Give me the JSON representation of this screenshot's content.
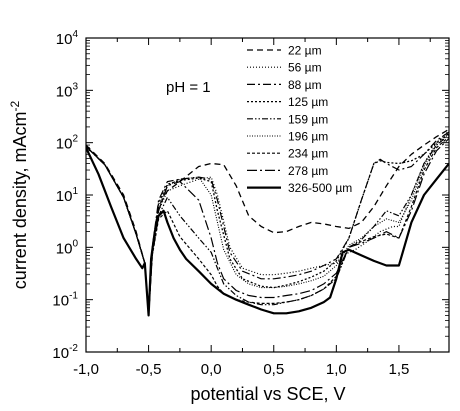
{
  "chart_data": {
    "type": "line",
    "title": "",
    "xlabel": "potential  vs SCE, V",
    "ylabel": "current density, mAcm",
    "ylabel_exponent": "-2",
    "x_scale": "linear",
    "y_scale": "log",
    "xlim": [
      -1.0,
      1.9
    ],
    "ylim": [
      0.01,
      10000
    ],
    "grid": false,
    "legend_position": "top-right",
    "annotation": "pH = 1",
    "x_ticks": [
      {
        "value": -1.0,
        "label": "-1,0"
      },
      {
        "value": -0.5,
        "label": "-0,5"
      },
      {
        "value": 0.0,
        "label": "0,0"
      },
      {
        "value": 0.5,
        "label": "0,5"
      },
      {
        "value": 1.0,
        "label": "1,0"
      },
      {
        "value": 1.5,
        "label": "1,5"
      }
    ],
    "y_ticks": [
      {
        "value": 0.01,
        "base": "10",
        "exp": "-2"
      },
      {
        "value": 0.1,
        "base": "10",
        "exp": "-1"
      },
      {
        "value": 1,
        "base": "10",
        "exp": "0"
      },
      {
        "value": 10,
        "base": "10",
        "exp": "1"
      },
      {
        "value": 100,
        "base": "10",
        "exp": "2"
      },
      {
        "value": 1000,
        "base": "10",
        "exp": "3"
      },
      {
        "value": 10000,
        "base": "10",
        "exp": "4"
      }
    ],
    "series": [
      {
        "name": "22 µm",
        "dash": "6,4",
        "width": 1.3,
        "x": [
          -1.0,
          -0.85,
          -0.7,
          -0.6,
          -0.53,
          -0.5,
          -0.47,
          -0.42,
          -0.35,
          -0.25,
          -0.1,
          0.0,
          0.1,
          0.2,
          0.3,
          0.4,
          0.5,
          0.6,
          0.7,
          0.8,
          0.9,
          1.0,
          1.1,
          1.2,
          1.3,
          1.4,
          1.5,
          1.6,
          1.7,
          1.8,
          1.9
        ],
        "y": [
          90,
          40,
          10,
          2,
          0.5,
          0.05,
          1.0,
          6,
          12,
          18,
          35,
          40,
          38,
          15,
          4,
          2.5,
          1.9,
          2.0,
          2.5,
          3,
          2.8,
          2.5,
          2.3,
          3,
          6,
          15,
          35,
          60,
          90,
          130,
          180
        ]
      },
      {
        "name": "56 µm",
        "dash": "1,2",
        "width": 1.2,
        "x": [
          -1.0,
          -0.85,
          -0.7,
          -0.6,
          -0.53,
          -0.5,
          -0.47,
          -0.42,
          -0.35,
          -0.25,
          -0.1,
          0.0,
          0.05,
          0.15,
          0.25,
          0.4,
          0.5,
          0.6,
          0.7,
          0.8,
          0.9,
          1.0,
          1.05,
          1.15,
          1.25,
          1.35,
          1.45,
          1.5,
          1.6,
          1.7,
          1.8,
          1.9
        ],
        "y": [
          85,
          38,
          9,
          1.8,
          0.5,
          0.05,
          0.8,
          5,
          12,
          15,
          20,
          22,
          10,
          1.0,
          0.4,
          0.3,
          0.3,
          0.32,
          0.35,
          0.4,
          0.45,
          0.5,
          0.7,
          0.9,
          1.3,
          2,
          2.5,
          2.5,
          10,
          40,
          100,
          170
        ]
      },
      {
        "name": "88 µm",
        "dash": "8,3,2,3",
        "width": 1.2,
        "x": [
          -1.0,
          -0.85,
          -0.7,
          -0.6,
          -0.53,
          -0.5,
          -0.47,
          -0.42,
          -0.35,
          -0.25,
          -0.1,
          0.0,
          0.05,
          0.15,
          0.25,
          0.4,
          0.5,
          0.6,
          0.7,
          0.8,
          0.9,
          1.0,
          1.1,
          1.2,
          1.3,
          1.35,
          1.4,
          1.5,
          1.6,
          1.7,
          1.8,
          1.9
        ],
        "y": [
          85,
          38,
          9,
          1.8,
          0.5,
          0.05,
          1.0,
          8,
          18,
          20,
          22,
          20,
          8,
          0.8,
          0.35,
          0.25,
          0.25,
          0.27,
          0.3,
          0.35,
          0.45,
          0.6,
          1.5,
          8,
          40,
          48,
          40,
          30,
          35,
          60,
          110,
          160
        ]
      },
      {
        "name": "125 µm",
        "dash": "2,2",
        "width": 1.3,
        "x": [
          -1.0,
          -0.85,
          -0.7,
          -0.6,
          -0.53,
          -0.5,
          -0.47,
          -0.42,
          -0.35,
          -0.25,
          -0.1,
          0.0,
          0.05,
          0.15,
          0.25,
          0.4,
          0.5,
          0.6,
          0.7,
          0.8,
          0.9,
          1.0,
          1.1,
          1.2,
          1.3,
          1.35,
          1.4,
          1.5,
          1.6,
          1.7,
          1.8,
          1.9
        ],
        "y": [
          85,
          38,
          9,
          1.8,
          0.5,
          0.05,
          0.9,
          7,
          16,
          19,
          21,
          18,
          5,
          0.6,
          0.25,
          0.18,
          0.17,
          0.19,
          0.22,
          0.27,
          0.35,
          0.55,
          1.5,
          8,
          40,
          45,
          42,
          40,
          45,
          60,
          100,
          150
        ]
      },
      {
        "name": "159 µm",
        "dash": "6,2,1.5,2,1.5,2",
        "width": 1.2,
        "x": [
          -1.0,
          -0.85,
          -0.7,
          -0.6,
          -0.53,
          -0.5,
          -0.47,
          -0.42,
          -0.35,
          -0.25,
          -0.1,
          0.0,
          0.05,
          0.1,
          0.2,
          0.3,
          0.4,
          0.5,
          0.6,
          0.7,
          0.8,
          0.9,
          1.0,
          1.1,
          1.2,
          1.3,
          1.4,
          1.5,
          1.6,
          1.7,
          1.8,
          1.9
        ],
        "y": [
          85,
          38,
          9,
          1.8,
          0.5,
          0.05,
          0.7,
          4,
          9,
          4,
          1.5,
          0.8,
          0.4,
          0.2,
          0.12,
          0.09,
          0.08,
          0.08,
          0.09,
          0.1,
          0.12,
          0.16,
          0.25,
          1.0,
          1.4,
          2.5,
          5,
          4,
          10,
          40,
          90,
          140
        ]
      },
      {
        "name": "196 µm",
        "dash": "1,1.5",
        "width": 1.1,
        "x": [
          -1.0,
          -0.85,
          -0.7,
          -0.6,
          -0.53,
          -0.5,
          -0.47,
          -0.42,
          -0.35,
          -0.25,
          -0.1,
          0.0,
          0.1,
          0.2,
          0.3,
          0.4,
          0.5,
          0.6,
          0.7,
          0.8,
          0.9,
          1.0,
          1.1,
          1.2,
          1.3,
          1.4,
          1.5,
          1.6,
          1.7,
          1.8,
          1.9
        ],
        "y": [
          85,
          38,
          9,
          1.8,
          0.5,
          0.05,
          0.8,
          6,
          15,
          20,
          22,
          10,
          0.9,
          0.3,
          0.2,
          0.17,
          0.17,
          0.18,
          0.2,
          0.23,
          0.28,
          0.45,
          1.1,
          1.5,
          2.5,
          3.5,
          3.0,
          8,
          35,
          90,
          150
        ]
      },
      {
        "name": "234 µm",
        "dash": "3,2",
        "width": 1.2,
        "x": [
          -1.0,
          -0.85,
          -0.7,
          -0.6,
          -0.53,
          -0.5,
          -0.47,
          -0.42,
          -0.35,
          -0.25,
          -0.1,
          0.0,
          0.05,
          0.1,
          0.2,
          0.3,
          0.4,
          0.5,
          0.6,
          0.7,
          0.8,
          0.9,
          1.0,
          1.1,
          1.2,
          1.3,
          1.4,
          1.5,
          1.6,
          1.7,
          1.8,
          1.9
        ],
        "y": [
          85,
          38,
          9,
          1.8,
          0.5,
          0.05,
          0.7,
          3.5,
          5,
          1.6,
          0.6,
          0.3,
          0.18,
          0.13,
          0.1,
          0.09,
          0.085,
          0.085,
          0.09,
          0.1,
          0.12,
          0.16,
          0.28,
          1.0,
          1.3,
          1.6,
          1.8,
          1.5,
          6,
          30,
          80,
          130
        ]
      },
      {
        "name": "278 µm",
        "dash": "10,3,2,3",
        "width": 1.2,
        "x": [
          -1.0,
          -0.85,
          -0.7,
          -0.6,
          -0.53,
          -0.5,
          -0.47,
          -0.42,
          -0.35,
          -0.25,
          -0.1,
          0.0,
          0.05,
          0.1,
          0.2,
          0.3,
          0.4,
          0.5,
          0.6,
          0.7,
          0.8,
          0.9,
          1.0,
          1.1,
          1.2,
          1.3,
          1.4,
          1.5,
          1.6,
          1.7,
          1.8,
          1.9
        ],
        "y": [
          85,
          38,
          9,
          1.8,
          0.5,
          0.05,
          0.8,
          5,
          15,
          18,
          8,
          1.5,
          0.5,
          0.25,
          0.15,
          0.12,
          0.11,
          0.11,
          0.12,
          0.13,
          0.15,
          0.2,
          0.32,
          1.0,
          1.2,
          1.5,
          2,
          1.5,
          5,
          25,
          70,
          120
        ]
      },
      {
        "name": "326-500 µm",
        "dash": "",
        "width": 2.2,
        "x": [
          -1.0,
          -0.9,
          -0.8,
          -0.7,
          -0.6,
          -0.55,
          -0.53,
          -0.5,
          -0.48,
          -0.45,
          -0.42,
          -0.38,
          -0.35,
          -0.3,
          -0.25,
          -0.2,
          -0.1,
          0.0,
          0.1,
          0.2,
          0.3,
          0.4,
          0.5,
          0.6,
          0.7,
          0.8,
          0.9,
          0.95,
          1.0,
          1.05,
          1.1,
          1.2,
          1.3,
          1.4,
          1.5,
          1.6,
          1.7,
          1.8,
          1.9
        ],
        "y": [
          80,
          25,
          6,
          1.5,
          0.6,
          0.4,
          0.5,
          0.05,
          0.6,
          2,
          4,
          5,
          3,
          1.5,
          0.9,
          0.6,
          0.35,
          0.2,
          0.13,
          0.1,
          0.08,
          0.065,
          0.055,
          0.055,
          0.06,
          0.07,
          0.09,
          0.11,
          0.25,
          0.8,
          0.9,
          0.7,
          0.55,
          0.45,
          0.45,
          3,
          10,
          20,
          40
        ]
      }
    ]
  }
}
